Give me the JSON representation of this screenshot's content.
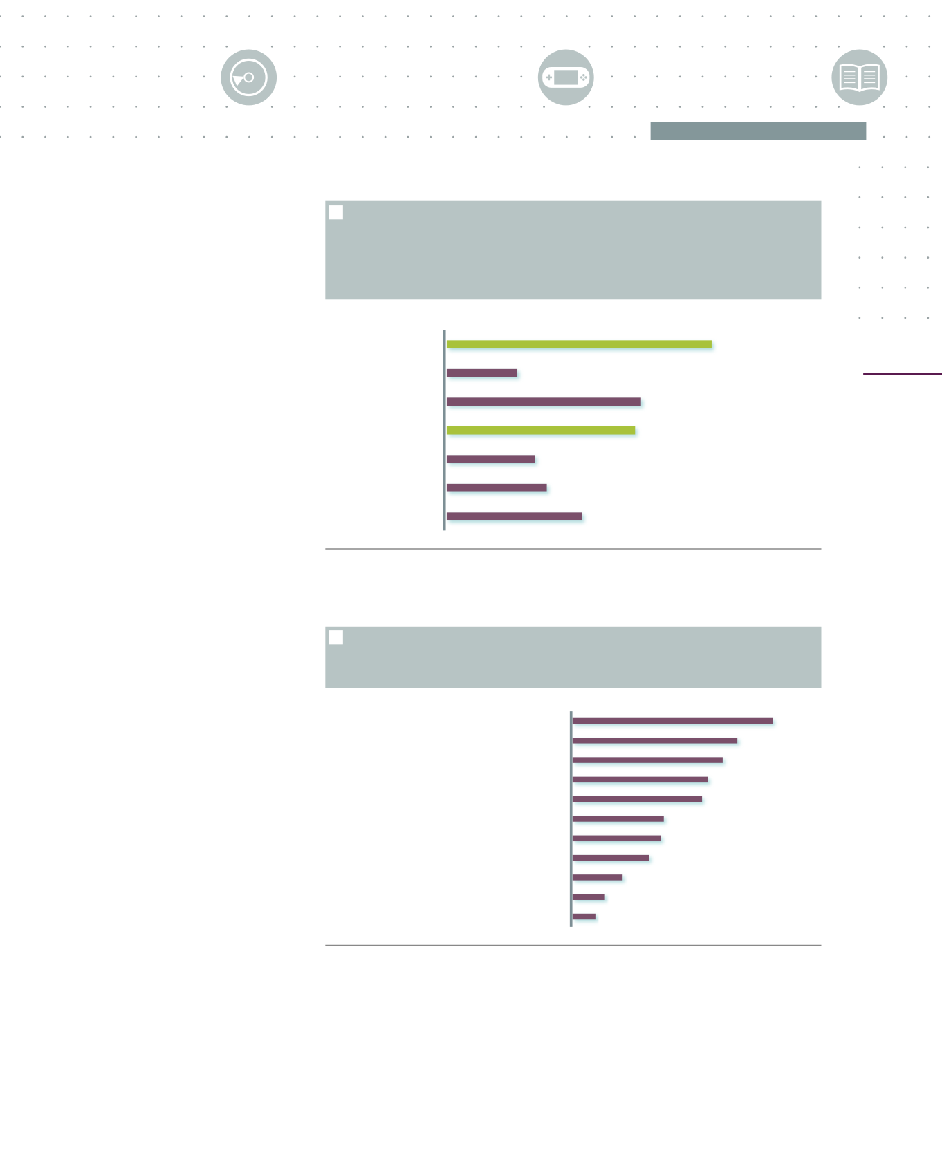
{
  "chart_data": [
    {
      "type": "bar",
      "orientation": "horizontal",
      "values": [
        90,
        24,
        66,
        64,
        30,
        34,
        46
      ],
      "colors": [
        "#a8c23a",
        "#7a4f6b",
        "#7a4f6b",
        "#a8c23a",
        "#7a4f6b",
        "#7a4f6b",
        "#7a4f6b"
      ],
      "xlim": [
        0,
        125
      ]
    },
    {
      "type": "bar",
      "orientation": "horizontal",
      "values": [
        68,
        56,
        51,
        46,
        44,
        31,
        30,
        26,
        17,
        11,
        8
      ],
      "color": "#7a4f6b",
      "xlim": [
        0,
        85
      ]
    }
  ]
}
